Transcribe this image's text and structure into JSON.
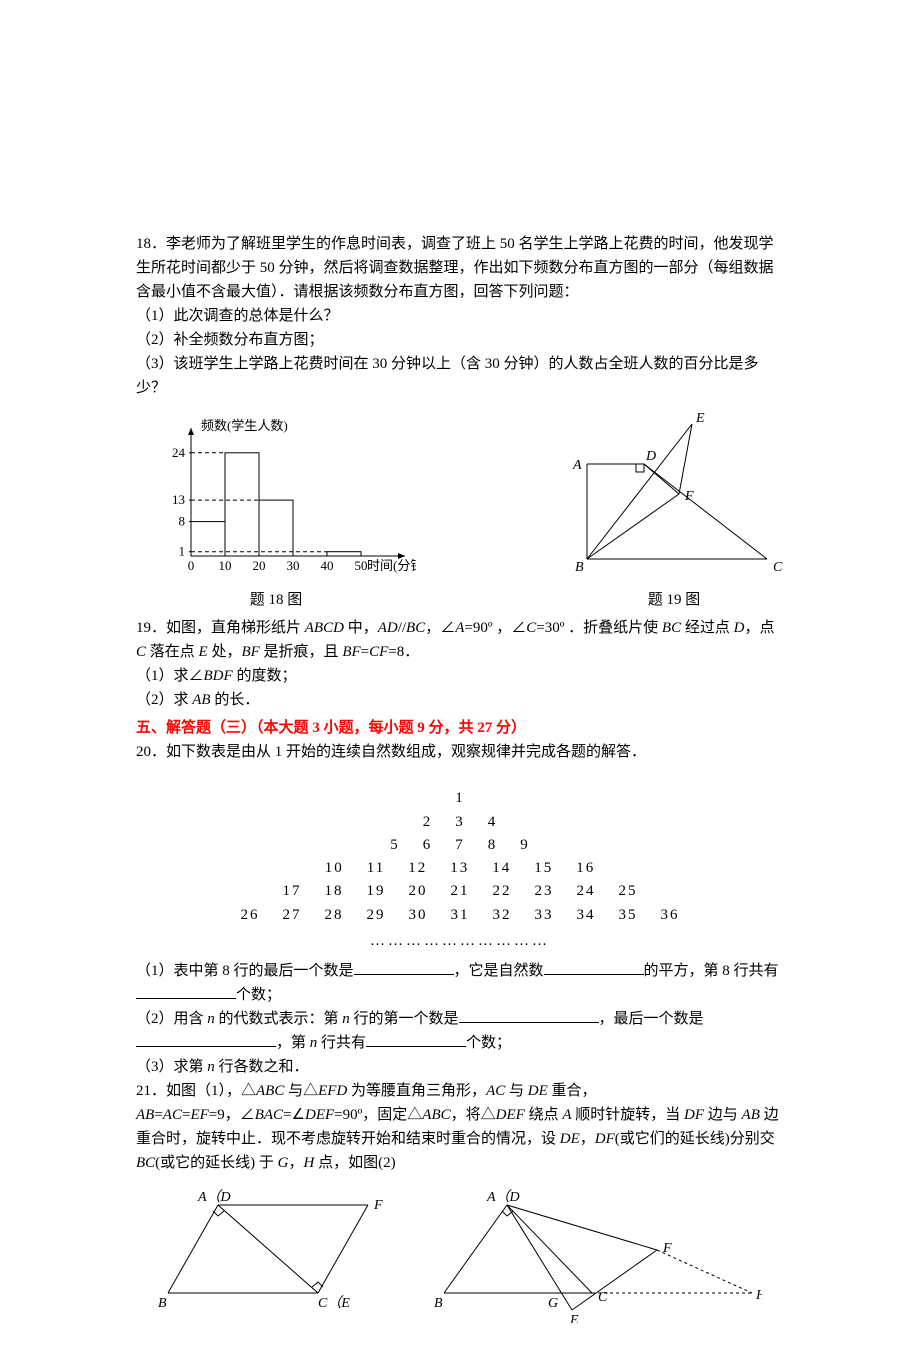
{
  "q18": {
    "stem1": "18．李老师为了解班里学生的作息时间表，调查了班上 50 名学生上学路上花费的时间，他发现学生所花时间都少于 50 分钟，然后将调查数据整理，作出如下频数分布直方图的一部分（每组数据含最小值不含最大值）．请根据该频数分布直方图，回答下列问题：",
    "p1": "（1）此次调查的总体是什么？",
    "p2": "（2）补全频数分布直方图；",
    "p3": "（3）该班学生上学路上花费时间在 30 分钟以上（含 30 分钟）的人数占全班人数的百分比是多少？",
    "caption": "题 18 图",
    "hist": {
      "y_label": "频数(学生人数)",
      "x_label": "时间(分钟)",
      "x_ticks": [
        "0",
        "10",
        "20",
        "30",
        "40",
        "50"
      ],
      "y_ticks": [
        1,
        8,
        13,
        24
      ],
      "bars": [
        {
          "x": 0,
          "h": 8
        },
        {
          "x": 1,
          "h": 24
        },
        {
          "x": 2,
          "h": 13
        },
        {
          "x": 4,
          "h": 1
        }
      ],
      "axis_color": "#000",
      "bar_border": "#000",
      "bar_fill": "none",
      "dash_color": "#000"
    }
  },
  "q19": {
    "caption": "题 19 图",
    "stem_a": "19．如图，直角梯形纸片 ",
    "stem_b": " 中，",
    "stem_c": "，∠",
    "stem_d": "=90º ，∠",
    "stem_e": "=30º ．折叠纸片使 ",
    "stem_f": " 经过点 ",
    "stem_g": "，点 ",
    "stem_h": " 落在点 ",
    "stem_i": " 处，",
    "stem_j": " 是折痕，且 ",
    "stem_k": "=8．",
    "p1a": "（1）求∠",
    "p1b": " 的度数；",
    "p2a": "（2）求 ",
    "p2b": " 的长．",
    "labels": {
      "A": "A",
      "B": "B",
      "C": "C",
      "D": "D",
      "E": "E",
      "F": "F",
      "AD": "AD",
      "BC": "BC",
      "BF": "BF",
      "CF": "CF",
      "BDF": "BDF",
      "AB": "AB",
      "ABCD": "ABCD"
    },
    "fig": {
      "stroke": "#000",
      "A": [
        5,
        40
      ],
      "B": [
        5,
        135
      ],
      "D": [
        62,
        40
      ],
      "C": [
        185,
        135
      ],
      "E": [
        110,
        0
      ],
      "F": [
        97,
        70
      ]
    }
  },
  "section5": "五、解答题（三）（本大题 3 小题，每小题 9 分，共 27 分）",
  "q20": {
    "stem": "20．如下数表是由从 1 开始的连续自然数组成，观察规律并完成各题的解答．",
    "rows": [
      "1",
      "2    3    4",
      "5    6    7    8    9",
      "10    11    12    13    14    15    16",
      "17    18    19    20    21    22    23    24    25",
      "26    27    28    29    30    31    32    33    34    35    36"
    ],
    "dots": "…………………………",
    "p1a": "（1）表中第 8 行的最后一个数是",
    "p1b": "，它是自然数",
    "p1c": "的平方，第 8 行共有",
    "p1d": "个数；",
    "p2a": "（2）用含 ",
    "p2b": " 的代数式表示：第 ",
    "p2c": " 行的第一个数是",
    "p2d": "，最后一个数是",
    "p2e": "，第 ",
    "p2f": " 行共有",
    "p2g": "个数；",
    "p3": "（3）求第 ",
    "p3b": " 行各数之和．",
    "n": "n"
  },
  "q21": {
    "line1a": "21．如图（1），△",
    "line1b": " 与△",
    "line1c": " 为等腰直角三角形，",
    "line1d": " 与 ",
    "line1e": " 重合，",
    "line2a": "=9，∠",
    "line2b": "=∠",
    "line2c": "=90º，固定△",
    "line2d": "，将△",
    "line2e": " 绕点 ",
    "line2f": " 顺时针旋转，当 ",
    "line2g": " 边与 ",
    "line2h": " 边重合时，旋转中止．现不考虑旋转开始和结束时重合的情况，设 ",
    "line2i": "，",
    "line2j": "(或它们的延长线)分别交 ",
    "line2k": "(或它的延长线) 于 ",
    "line2l": "，",
    "line2m": " 点，如图(2)",
    "labels": {
      "ABC": "ABC",
      "EFD": "EFD",
      "AC": "AC",
      "DE": "DE",
      "AB": "AB",
      "EF": "EF",
      "BAC": "BAC",
      "DEF": "DEF",
      "A": "A",
      "DF": "DF",
      "BC": "BC",
      "G": "G",
      "H": "H",
      "A_D": "A（D",
      "F": "F",
      "B": "B",
      "C_E": "C（E",
      "C": "C",
      "E": "E"
    },
    "fig": {
      "stroke": "#000"
    }
  }
}
